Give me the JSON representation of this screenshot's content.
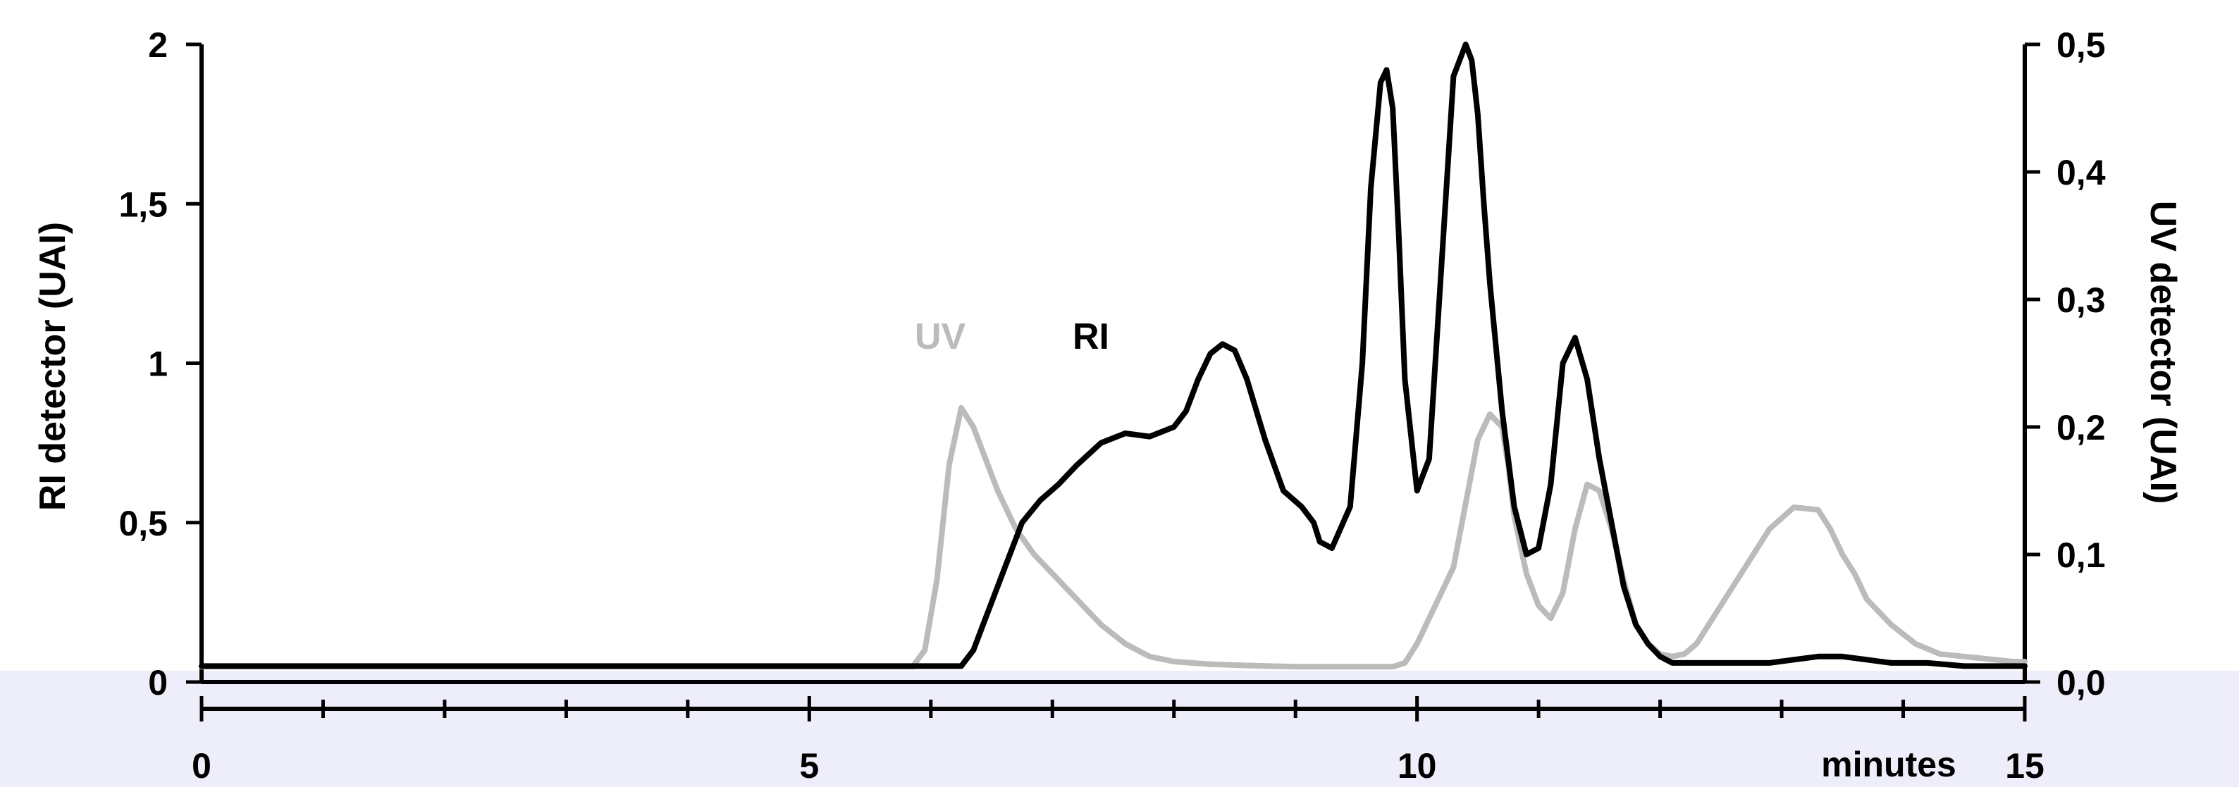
{
  "chart_data": {
    "type": "line",
    "title": "",
    "xlabel": "minutes",
    "ylabel": "RI detector (UAI)",
    "ylabel_right": "UV detector (UAI)",
    "xlim": [
      0,
      15
    ],
    "ylim": [
      0,
      2
    ],
    "ylim_right": [
      0,
      0.5
    ],
    "x_ticks": [
      "0",
      "5",
      "10",
      "15"
    ],
    "y_ticks": [
      "0",
      "0,5",
      "1",
      "1,5",
      "2"
    ],
    "y_ticks_right": [
      "0,0",
      "0,1",
      "0,2",
      "0,3",
      "0,4",
      "0,5"
    ],
    "grid": false,
    "legend": "inline labels",
    "series": [
      {
        "name": "RI",
        "axis": "left",
        "color": "#000000",
        "x": [
          0,
          5.9,
          6.25,
          6.35,
          6.45,
          6.6,
          6.75,
          6.9,
          7.05,
          7.2,
          7.4,
          7.6,
          7.8,
          8.0,
          8.1,
          8.2,
          8.3,
          8.4,
          8.5,
          8.6,
          8.75,
          8.9,
          9.05,
          9.15,
          9.2,
          9.3,
          9.45,
          9.55,
          9.62,
          9.7,
          9.75,
          9.8,
          9.85,
          9.9,
          10.0,
          10.1,
          10.2,
          10.3,
          10.4,
          10.45,
          10.5,
          10.55,
          10.6,
          10.7,
          10.8,
          10.9,
          11.0,
          11.1,
          11.2,
          11.3,
          11.4,
          11.5,
          11.6,
          11.7,
          11.8,
          11.9,
          12.0,
          12.1,
          12.2,
          12.3,
          12.4,
          12.5,
          12.7,
          12.9,
          13.1,
          13.3,
          13.5,
          13.7,
          13.9,
          14.2,
          14.5,
          14.8,
          15.0
        ],
        "values": [
          0.05,
          0.05,
          0.05,
          0.1,
          0.2,
          0.35,
          0.5,
          0.57,
          0.62,
          0.68,
          0.75,
          0.78,
          0.77,
          0.8,
          0.85,
          0.95,
          1.03,
          1.06,
          1.04,
          0.95,
          0.76,
          0.6,
          0.55,
          0.5,
          0.44,
          0.42,
          0.55,
          1.0,
          1.55,
          1.88,
          1.92,
          1.8,
          1.4,
          0.95,
          0.6,
          0.7,
          1.3,
          1.9,
          2.0,
          1.95,
          1.78,
          1.5,
          1.25,
          0.85,
          0.55,
          0.4,
          0.42,
          0.62,
          1.0,
          1.08,
          0.95,
          0.7,
          0.5,
          0.3,
          0.18,
          0.12,
          0.08,
          0.06,
          0.06,
          0.06,
          0.06,
          0.06,
          0.06,
          0.06,
          0.07,
          0.08,
          0.08,
          0.07,
          0.06,
          0.06,
          0.05,
          0.05,
          0.05
        ]
      },
      {
        "name": "UV",
        "axis": "right",
        "color": "#bbbbbb",
        "x": [
          0,
          5.85,
          5.95,
          6.05,
          6.15,
          6.25,
          6.35,
          6.45,
          6.55,
          6.7,
          6.85,
          7.0,
          7.2,
          7.4,
          7.6,
          7.8,
          8.0,
          8.3,
          8.6,
          9.0,
          9.5,
          9.8,
          9.9,
          10.0,
          10.1,
          10.2,
          10.3,
          10.4,
          10.5,
          10.6,
          10.7,
          10.75,
          10.8,
          10.9,
          11.0,
          11.1,
          11.2,
          11.3,
          11.4,
          11.5,
          11.6,
          11.7,
          11.8,
          11.9,
          12.0,
          12.1,
          12.2,
          12.3,
          12.4,
          12.5,
          12.7,
          12.9,
          13.1,
          13.3,
          13.4,
          13.5,
          13.6,
          13.7,
          13.9,
          14.1,
          14.3,
          14.5,
          14.7,
          14.9,
          15.0
        ],
        "values": [
          0.012,
          0.012,
          0.025,
          0.08,
          0.17,
          0.215,
          0.2,
          0.175,
          0.15,
          0.12,
          0.1,
          0.085,
          0.065,
          0.045,
          0.03,
          0.02,
          0.016,
          0.014,
          0.013,
          0.012,
          0.012,
          0.012,
          0.015,
          0.03,
          0.05,
          0.07,
          0.09,
          0.14,
          0.19,
          0.21,
          0.2,
          0.17,
          0.13,
          0.085,
          0.06,
          0.05,
          0.07,
          0.12,
          0.155,
          0.15,
          0.12,
          0.08,
          0.045,
          0.03,
          0.022,
          0.02,
          0.022,
          0.03,
          0.045,
          0.06,
          0.09,
          0.12,
          0.137,
          0.135,
          0.12,
          0.1,
          0.085,
          0.065,
          0.045,
          0.03,
          0.022,
          0.02,
          0.018,
          0.016,
          0.016
        ]
      }
    ]
  }
}
